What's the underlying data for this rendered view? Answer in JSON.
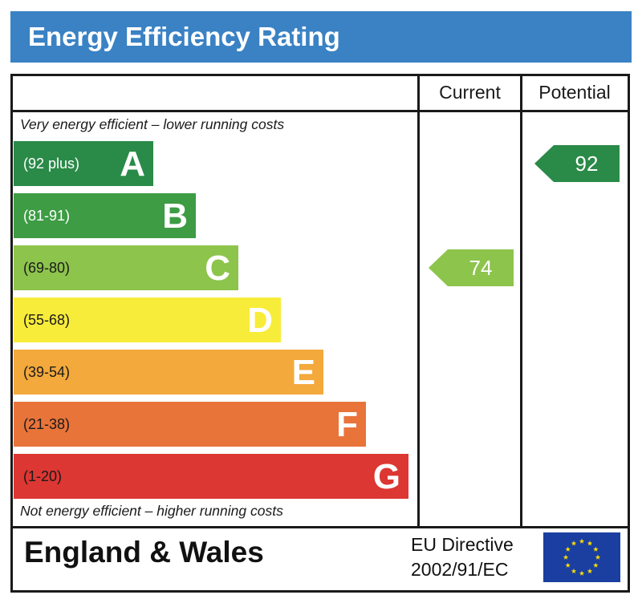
{
  "header": {
    "title": "Energy Efficiency Rating"
  },
  "columns": {
    "current": "Current",
    "potential": "Potential"
  },
  "notes": {
    "top": "Very energy efficient – lower running costs",
    "bottom": "Not energy efficient – higher running costs"
  },
  "footer": {
    "region": "England & Wales",
    "directive_line1": "EU Directive",
    "directive_line2": "2002/91/EC",
    "flag_icon": "eu-flag-icon"
  },
  "colors": {
    "title_bg": "#3a82c4",
    "flag_bg": "#1a3fa0",
    "flag_stars": "#ffdd00"
  },
  "chart_data": {
    "type": "bar",
    "title": "Energy Efficiency Rating",
    "categories": [
      "A",
      "B",
      "C",
      "D",
      "E",
      "F",
      "G"
    ],
    "bands": [
      {
        "letter": "A",
        "range": "(92 plus)",
        "min": 92,
        "max": 100,
        "color": "#2a8a48",
        "text_color": "#ffffff"
      },
      {
        "letter": "B",
        "range": "(81-91)",
        "min": 81,
        "max": 91,
        "color": "#3d9c44",
        "text_color": "#ffffff"
      },
      {
        "letter": "C",
        "range": "(69-80)",
        "min": 69,
        "max": 80,
        "color": "#8dc44c",
        "text_color": "#1a1a1a"
      },
      {
        "letter": "D",
        "range": "(55-68)",
        "min": 55,
        "max": 68,
        "color": "#f8ec3a",
        "text_color": "#1a1a1a"
      },
      {
        "letter": "E",
        "range": "(39-54)",
        "min": 39,
        "max": 54,
        "color": "#f3a93b",
        "text_color": "#1a1a1a"
      },
      {
        "letter": "F",
        "range": "(21-38)",
        "min": 21,
        "max": 38,
        "color": "#e8743a",
        "text_color": "#1a1a1a"
      },
      {
        "letter": "G",
        "range": "(1-20)",
        "min": 1,
        "max": 20,
        "color": "#dc3732",
        "text_color": "#1a1a1a"
      }
    ],
    "ratings": [
      {
        "label": "Current",
        "value": 74,
        "band": "C",
        "color": "#8dc44c"
      },
      {
        "label": "Potential",
        "value": 92,
        "band": "A",
        "color": "#2a8a48"
      }
    ]
  }
}
